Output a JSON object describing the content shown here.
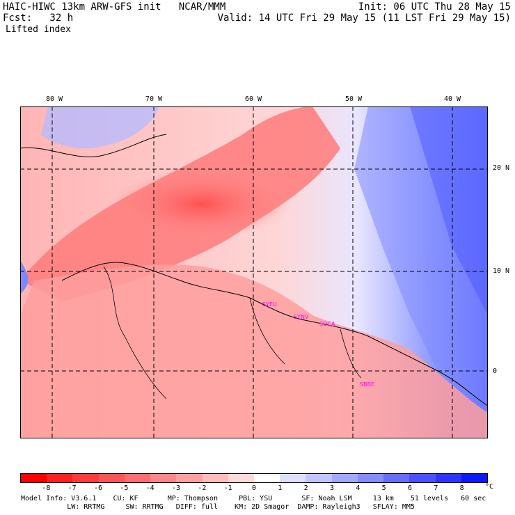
{
  "header": {
    "title": "HAIC-HIWC 13km ARW-GFS init   NCAR/MMM",
    "init": "Init: 06 UTC Thu 28 May 15",
    "fcst": "Fcst:   32 h",
    "valid": "Valid: 14 UTC Fri 29 May 15 (11 LST Fri 29 May 15)",
    "field": "Lifted index"
  },
  "map": {
    "lon_labels": [
      "80 W",
      "70 W",
      "60 W",
      "50 W",
      "40 W"
    ],
    "lat_labels": [
      "20 N",
      "10 N",
      "0"
    ],
    "stations": [
      "SYEU",
      "SYNV",
      "SOCA",
      "SBBE"
    ],
    "station_color": "#ff00ff"
  },
  "colorbar": {
    "labels": [
      "-8",
      "-7",
      "-6",
      "-5",
      "-4",
      "-3",
      "-2",
      "-1",
      "0",
      "1",
      "2",
      "3",
      "4",
      "5",
      "6",
      "7",
      "8"
    ],
    "unit": "°C",
    "colors": [
      "#ff0000",
      "#ff2020",
      "#ff3c3c",
      "#ff5555",
      "#ff6e6e",
      "#ff8787",
      "#ffa0a0",
      "#ffbcbc",
      "#ffd9d9",
      "#ffffff",
      "#dde0ff",
      "#c0c4ff",
      "#a2a8ff",
      "#848cff",
      "#666eff",
      "#4852ff",
      "#2a36ff",
      "#0c1aff"
    ]
  },
  "footer": {
    "line1": "Model Info: V3.6.1    CU: KF       MP: Thompson     PBL: YSU       SF: Noah LSM     13 km    51 levels   60 sec",
    "line2": "           LW: RRTMG     SW: RRTMG   DIFF: full    KM: 2D Smagor  DAMP: Rayleigh3   SFLAY: MM5"
  }
}
